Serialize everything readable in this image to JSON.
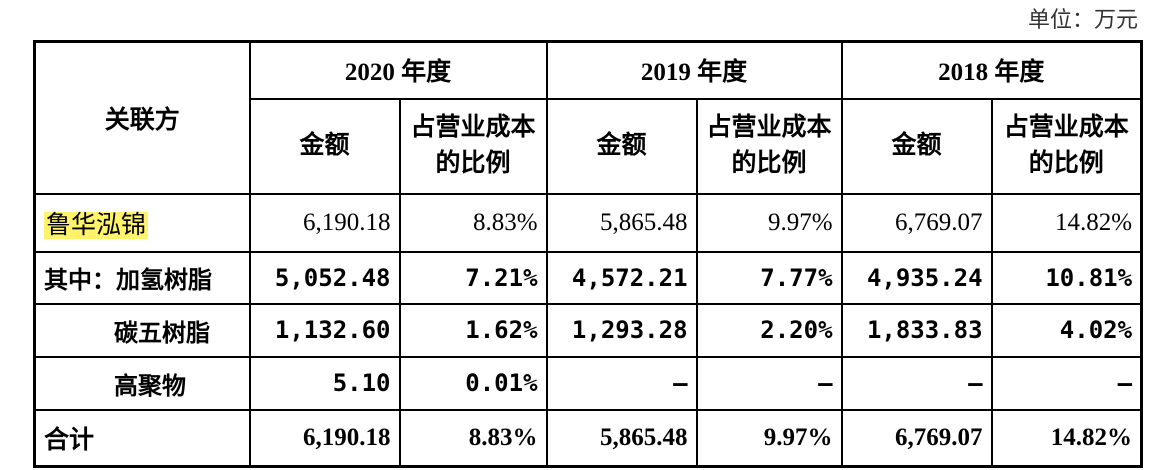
{
  "unit": "单位：万元",
  "table": {
    "corner": "关联方",
    "years": [
      "2020 年度",
      "2019 年度",
      "2018 年度"
    ],
    "subheaders": [
      "金额",
      "占营业成本的比例",
      "金额",
      "占营业成本的比例",
      "金额",
      "占营业成本的比例"
    ],
    "rows": [
      [
        "鲁华泓锦",
        "6,190.18",
        "8.83%",
        "5,865.48",
        "9.97%",
        "6,769.07",
        "14.82%"
      ],
      [
        "其中：加氢树脂",
        "5,052.48",
        "7.21%",
        "4,572.21",
        "7.77%",
        "4,935.24",
        "10.81%"
      ],
      [
        "碳五树脂",
        "1,132.60",
        "1.62%",
        "1,293.28",
        "2.20%",
        "1,833.83",
        "4.02%"
      ],
      [
        "高聚物",
        "5.10",
        "0.01%",
        "–",
        "–",
        "–",
        "–"
      ],
      [
        "合计",
        "6,190.18",
        "8.83%",
        "5,865.48",
        "9.97%",
        "6,769.07",
        "14.82%"
      ]
    ]
  }
}
